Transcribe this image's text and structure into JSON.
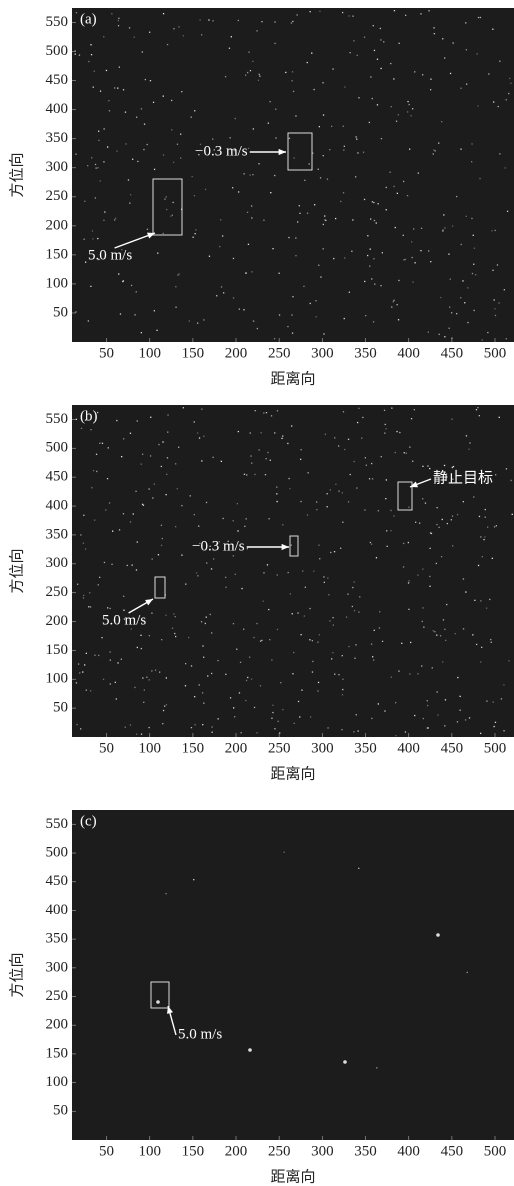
{
  "chart_data": [
    {
      "type": "image",
      "panel_label": "(a)",
      "xlabel": "距离向",
      "ylabel": "方位向",
      "xlim": [
        10,
        522
      ],
      "ylim": [
        0,
        575
      ],
      "xticks": [
        50,
        100,
        150,
        200,
        250,
        300,
        350,
        400,
        450,
        500
      ],
      "yticks": [
        50,
        100,
        150,
        200,
        250,
        300,
        350,
        400,
        450,
        500,
        550
      ],
      "annotations": [
        "−0.3 m/s",
        "5.0 m/s"
      ]
    },
    {
      "type": "image",
      "panel_label": "(b)",
      "xlabel": "距离向",
      "ylabel": "方位向",
      "xlim": [
        10,
        522
      ],
      "ylim": [
        0,
        575
      ],
      "xticks": [
        50,
        100,
        150,
        200,
        250,
        300,
        350,
        400,
        450,
        500
      ],
      "yticks": [
        50,
        100,
        150,
        200,
        250,
        300,
        350,
        400,
        450,
        500,
        550
      ],
      "annotations": [
        "静止目标",
        "−0.3 m/s",
        "5.0 m/s"
      ]
    },
    {
      "type": "image",
      "panel_label": "(c)",
      "xlabel": "距离向",
      "ylabel": "方位向",
      "xlim": [
        10,
        522
      ],
      "ylim": [
        0,
        575
      ],
      "xticks": [
        50,
        100,
        150,
        200,
        250,
        300,
        350,
        400,
        450,
        500
      ],
      "yticks": [
        50,
        100,
        150,
        200,
        250,
        300,
        350,
        400,
        450,
        500,
        550
      ],
      "annotations": [
        "5.0 m/s"
      ]
    }
  ]
}
